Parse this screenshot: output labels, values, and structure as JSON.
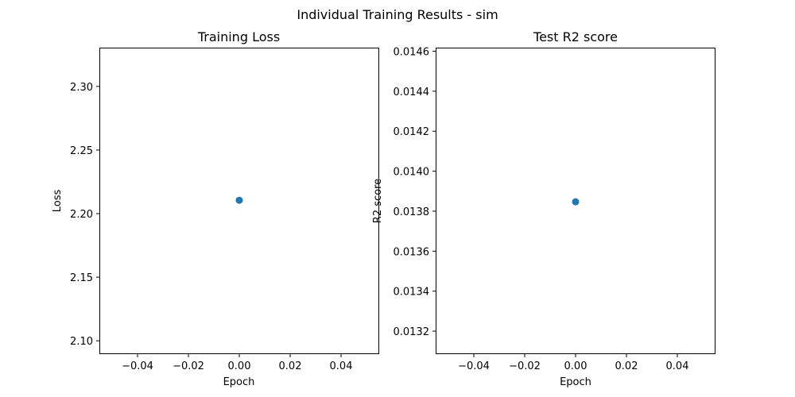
{
  "figure": {
    "title": "Individual Training Results - sim"
  },
  "chart_data": [
    {
      "type": "scatter",
      "title": "Training Loss",
      "xlabel": "Epoch",
      "ylabel": "Loss",
      "xlim": [
        -0.055,
        0.055
      ],
      "ylim": [
        2.0895,
        2.3305
      ],
      "xticks": [
        -0.04,
        -0.02,
        0.0,
        0.02,
        0.04
      ],
      "xtick_labels": [
        "−0.04",
        "−0.02",
        "0.00",
        "0.02",
        "0.04"
      ],
      "yticks": [
        2.1,
        2.15,
        2.2,
        2.25,
        2.3
      ],
      "ytick_labels": [
        "2.10",
        "2.15",
        "2.20",
        "2.25",
        "2.30"
      ],
      "grid": false,
      "marker_color": "#1f77b4",
      "series": [
        {
          "x": [
            0
          ],
          "y": [
            2.2105
          ]
        }
      ]
    },
    {
      "type": "scatter",
      "title": "Test R2 score",
      "xlabel": "Epoch",
      "ylabel": "R2 score",
      "xlim": [
        -0.055,
        0.055
      ],
      "ylim": [
        0.013085,
        0.014618
      ],
      "xticks": [
        -0.04,
        -0.02,
        0.0,
        0.02,
        0.04
      ],
      "xtick_labels": [
        "−0.04",
        "−0.02",
        "0.00",
        "0.02",
        "0.04"
      ],
      "yticks": [
        0.0132,
        0.0134,
        0.0136,
        0.0138,
        0.014,
        0.0142,
        0.0144,
        0.0146
      ],
      "ytick_labels": [
        "0.0132",
        "0.0134",
        "0.0136",
        "0.0138",
        "0.0140",
        "0.0142",
        "0.0144",
        "0.0146"
      ],
      "grid": false,
      "marker_color": "#1f77b4",
      "series": [
        {
          "x": [
            0
          ],
          "y": [
            0.013847
          ]
        }
      ]
    }
  ]
}
